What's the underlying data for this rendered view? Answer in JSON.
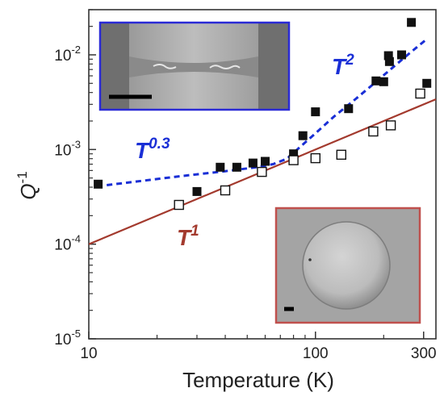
{
  "chart_data": {
    "type": "scatter",
    "title": "",
    "xlabel": "Temperature (K)",
    "ylabel": "Q",
    "ylabel_superscript": "-1",
    "x_scale": "log",
    "y_scale": "log",
    "xlim": [
      10,
      340
    ],
    "ylim": [
      1e-05,
      0.03
    ],
    "x_ticks": [
      {
        "value": 10,
        "label": "10"
      },
      {
        "value": 100,
        "label": "100"
      },
      {
        "value": 300,
        "label": "300"
      }
    ],
    "y_ticks": [
      {
        "value": 0.01,
        "base": "10",
        "exp": "-2"
      },
      {
        "value": 0.001,
        "base": "10",
        "exp": "-3"
      },
      {
        "value": 0.0001,
        "base": "10",
        "exp": "-4"
      },
      {
        "value": 1e-05,
        "base": "10",
        "exp": "-5"
      }
    ],
    "grid": false,
    "series": [
      {
        "marker": "filled-square",
        "color": "#111111",
        "points": [
          [
            11,
            0.00043
          ],
          [
            30,
            0.00036
          ],
          [
            38,
            0.00065
          ],
          [
            45,
            0.00065
          ],
          [
            53,
            0.00072
          ],
          [
            60,
            0.00075
          ],
          [
            80,
            0.0009
          ],
          [
            88,
            0.0014
          ],
          [
            100,
            0.0025
          ],
          [
            140,
            0.0027
          ],
          [
            185,
            0.0053
          ],
          [
            200,
            0.0052
          ],
          [
            210,
            0.0098
          ],
          [
            212,
            0.0085
          ],
          [
            240,
            0.01
          ],
          [
            265,
            0.022
          ],
          [
            310,
            0.005
          ]
        ]
      },
      {
        "marker": "open-square",
        "color": "#111111",
        "points": [
          [
            25,
            0.00026
          ],
          [
            40,
            0.00037
          ],
          [
            58,
            0.00058
          ],
          [
            80,
            0.00077
          ],
          [
            100,
            0.00081
          ],
          [
            130,
            0.00088
          ],
          [
            180,
            0.00155
          ],
          [
            215,
            0.0018
          ],
          [
            290,
            0.0039
          ]
        ]
      }
    ],
    "fits": [
      {
        "name": "T^1",
        "style": "solid",
        "color": "#a33a2e",
        "points": [
          [
            10,
            0.0001
          ],
          [
            340,
            0.0034
          ]
        ]
      },
      {
        "name": "T^0.3 + T^2",
        "style": "dashed",
        "color": "#1a2fd6",
        "points": [
          [
            12,
            0.00042
          ],
          [
            25,
            0.00052
          ],
          [
            40,
            0.00059
          ],
          [
            55,
            0.00065
          ],
          [
            65,
            0.0007
          ],
          [
            75,
            0.0008
          ],
          [
            85,
            0.00105
          ],
          [
            100,
            0.00148
          ],
          [
            120,
            0.0022
          ],
          [
            150,
            0.0034
          ],
          [
            180,
            0.0049
          ],
          [
            220,
            0.0074
          ],
          [
            260,
            0.0104
          ],
          [
            310,
            0.0147
          ]
        ]
      }
    ],
    "annotations": [
      {
        "base": "T",
        "exp": "2",
        "color": "#1a2fd6"
      },
      {
        "base": "T",
        "exp": "0.3",
        "color": "#1a2fd6"
      },
      {
        "base": "T",
        "exp": "1",
        "color": "#a33a2e"
      }
    ],
    "insets": [
      {
        "content": "micrograph-bridge",
        "border_color": "#2a2ad6"
      },
      {
        "content": "micrograph-dome",
        "border_color": "#c0504d"
      }
    ]
  }
}
